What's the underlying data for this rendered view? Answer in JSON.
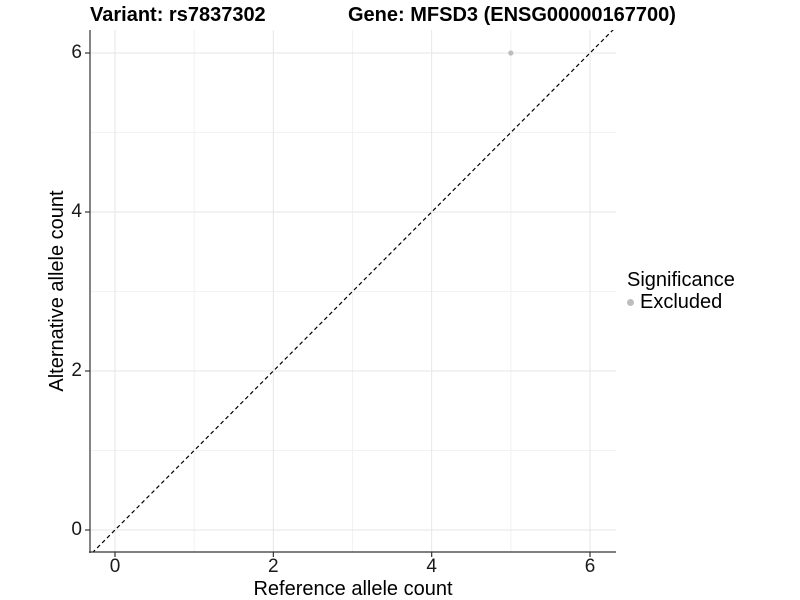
{
  "titles": {
    "variant": "Variant: rs7837302",
    "gene": "Gene: MFSD3 (ENSG00000167700)"
  },
  "chart_data": {
    "type": "scatter",
    "title_left": "Variant: rs7837302",
    "title_right": "Gene: MFSD3 (ENSG00000167700)",
    "xlabel": "Reference allele count",
    "ylabel": "Alternative allele count",
    "xlim": [
      -0.32,
      6.34
    ],
    "ylim": [
      -0.28,
      6.29
    ],
    "x_ticks": [
      0,
      2,
      4,
      6
    ],
    "y_ticks": [
      0,
      2,
      4,
      6
    ],
    "x_minor_ticks": [
      1,
      3,
      5
    ],
    "y_minor_ticks": [
      1,
      3,
      5
    ],
    "grid": true,
    "series": [
      {
        "name": "Excluded",
        "points": [
          {
            "x": 5,
            "y": 6
          }
        ],
        "color": "#bdbdbd"
      }
    ],
    "reference_line": {
      "kind": "identity",
      "equation": "y = x",
      "style": "dashed",
      "color": "#000000"
    },
    "legend": {
      "title": "Significance",
      "position": "right",
      "entries": [
        {
          "label": "Excluded",
          "color": "#bdbdbd"
        }
      ]
    },
    "colors": {
      "background": "#ffffff",
      "grid_major": "#e6e6e6",
      "grid_minor": "#f2f2f2",
      "axis_line": "#333333",
      "tick_mark": "#333333",
      "point": "#bdbdbd"
    }
  }
}
